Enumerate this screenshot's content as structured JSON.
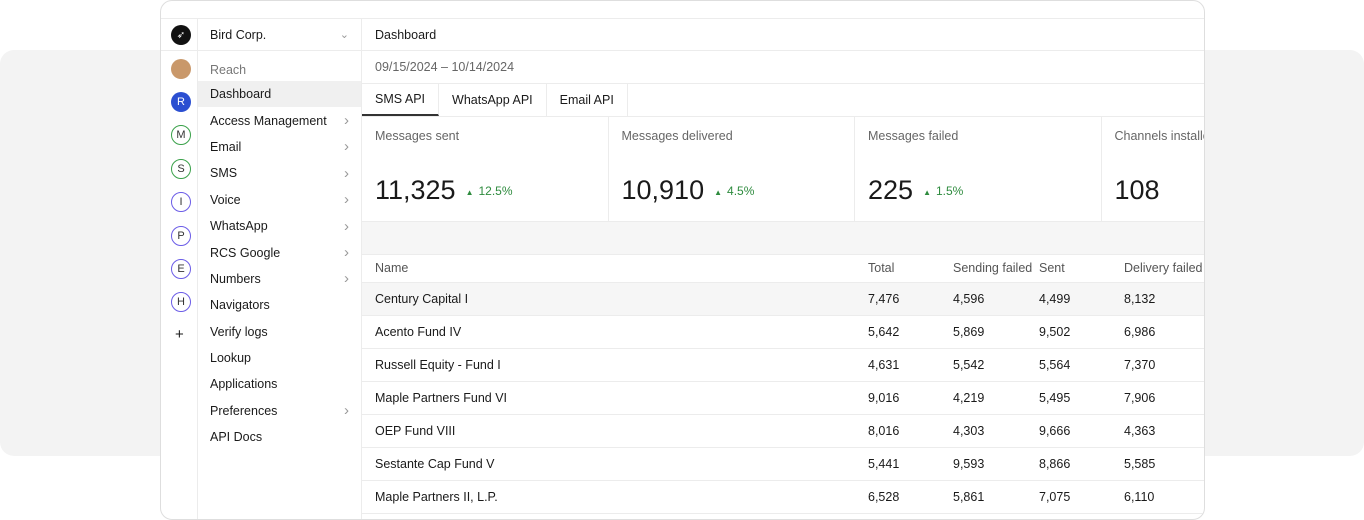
{
  "org": {
    "name": "Bird Corp."
  },
  "rail": {
    "items": [
      {
        "letter": "R",
        "color": "#2b4fd1",
        "filled": true
      },
      {
        "letter": "M",
        "color": "#3aa14a"
      },
      {
        "letter": "S",
        "color": "#3aa14a"
      },
      {
        "letter": "I",
        "color": "#6b5ce7"
      },
      {
        "letter": "P",
        "color": "#6b5ce7"
      },
      {
        "letter": "E",
        "color": "#6b5ce7"
      },
      {
        "letter": "H",
        "color": "#6b5ce7"
      }
    ],
    "add_label": "+"
  },
  "nav": {
    "section": "Reach",
    "items": [
      {
        "label": "Dashboard",
        "active": true
      },
      {
        "label": "Access Management",
        "chevron": true
      },
      {
        "label": "Email",
        "chevron": true
      },
      {
        "label": "SMS",
        "chevron": true
      },
      {
        "label": "Voice",
        "chevron": true
      },
      {
        "label": "WhatsApp",
        "chevron": true
      },
      {
        "label": "RCS Google",
        "chevron": true
      },
      {
        "label": "Numbers",
        "chevron": true
      },
      {
        "label": "Navigators"
      },
      {
        "label": "Verify logs"
      },
      {
        "label": "Lookup"
      },
      {
        "label": "Applications"
      },
      {
        "label": "Preferences",
        "chevron": true
      },
      {
        "label": "API Docs"
      }
    ]
  },
  "header": {
    "title": "Dashboard",
    "date_range": "09/15/2024 – 10/14/2024"
  },
  "tabs": [
    {
      "label": "SMS API",
      "active": true
    },
    {
      "label": "WhatsApp API"
    },
    {
      "label": "Email API"
    }
  ],
  "cards": [
    {
      "label": "Messages sent",
      "value": "11,325",
      "change": "12.5%"
    },
    {
      "label": "Messages delivered",
      "value": "10,910",
      "change": "4.5%"
    },
    {
      "label": "Messages failed",
      "value": "225",
      "change": "1.5%"
    },
    {
      "label": "Channels installed",
      "value": "108"
    }
  ],
  "table": {
    "columns": [
      "Name",
      "Total",
      "Sending failed",
      "Sent",
      "Delivery failed"
    ],
    "rows": [
      [
        "Century Capital I",
        "7,476",
        "4,596",
        "4,499",
        "8,132"
      ],
      [
        "Acento Fund IV",
        "5,642",
        "5,869",
        "9,502",
        "6,986"
      ],
      [
        "Russell Equity - Fund I",
        "4,631",
        "5,542",
        "5,564",
        "7,370"
      ],
      [
        "Maple Partners Fund VI",
        "9,016",
        "4,219",
        "5,495",
        "7,906"
      ],
      [
        "OEP Fund VIII",
        "8,016",
        "4,303",
        "9,666",
        "4,363"
      ],
      [
        "Sestante Cap Fund V",
        "5,441",
        "9,593",
        "8,866",
        "5,585"
      ],
      [
        "Maple Partners II, L.P.",
        "6,528",
        "5,861",
        "7,075",
        "6,110"
      ]
    ]
  }
}
